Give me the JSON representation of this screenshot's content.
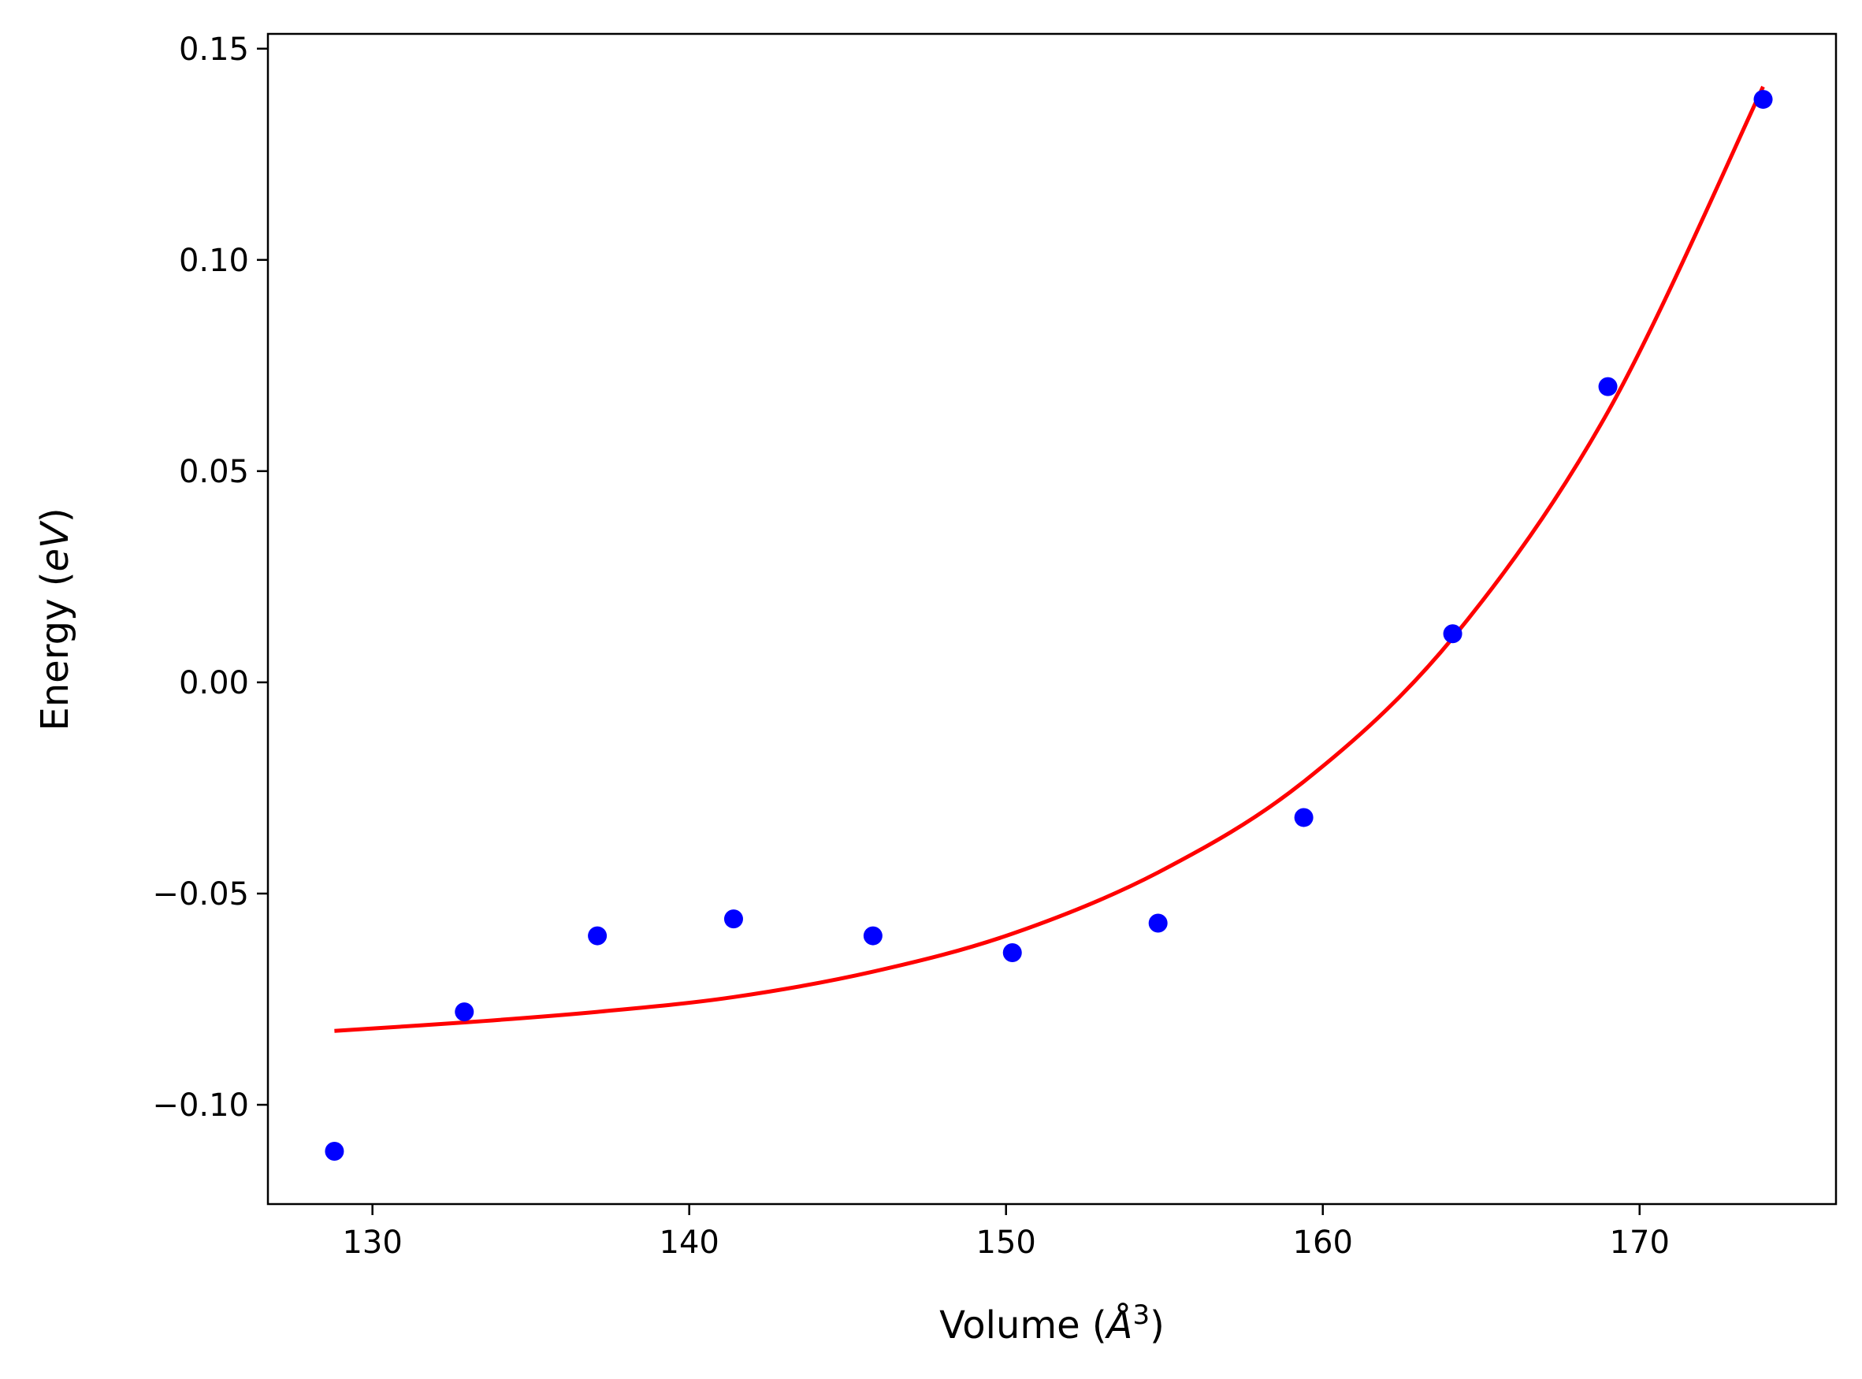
{
  "chart_data": {
    "type": "scatter",
    "title": "",
    "xlabel": {
      "prefix": "Volume (",
      "symbol": "Å",
      "power": "3",
      "suffix": ")"
    },
    "ylabel": {
      "prefix": "Energy (",
      "unit": "eV",
      "suffix": ")"
    },
    "xlim": [
      126.7,
      176.2
    ],
    "ylim": [
      -0.1235,
      0.1535
    ],
    "x_ticks": [
      {
        "value": 130,
        "label": "130"
      },
      {
        "value": 140,
        "label": "140"
      },
      {
        "value": 150,
        "label": "150"
      },
      {
        "value": 160,
        "label": "160"
      },
      {
        "value": 170,
        "label": "170"
      }
    ],
    "y_ticks": [
      {
        "value": -0.1,
        "label": "−0.10"
      },
      {
        "value": -0.05,
        "label": "−0.05"
      },
      {
        "value": 0.0,
        "label": "0.00"
      },
      {
        "value": 0.05,
        "label": "0.05"
      },
      {
        "value": 0.1,
        "label": "0.10"
      },
      {
        "value": 0.15,
        "label": "0.15"
      }
    ],
    "grid": false,
    "series": [
      {
        "kind": "points",
        "color": "#0000ff",
        "x": [
          128.8,
          132.9,
          137.1,
          141.4,
          145.8,
          150.2,
          154.8,
          159.4,
          164.1,
          169.0,
          173.9
        ],
        "y": [
          -0.111,
          -0.078,
          -0.06,
          -0.056,
          -0.06,
          -0.064,
          -0.057,
          -0.032,
          0.0115,
          0.07,
          0.138
        ]
      },
      {
        "kind": "fit-line",
        "color": "#ff0000",
        "x": [
          128.8,
          132.9,
          137.1,
          141.4,
          145.8,
          150.2,
          154.8,
          159.4,
          164.1,
          169.0,
          173.9
        ],
        "y": [
          -0.0825,
          -0.0805,
          -0.078,
          -0.0745,
          -0.0685,
          -0.0595,
          -0.045,
          -0.0235,
          0.0105,
          0.064,
          0.141
        ]
      }
    ]
  }
}
